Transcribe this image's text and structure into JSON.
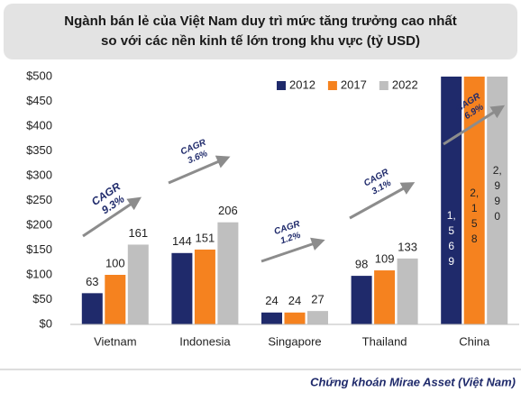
{
  "chart_data": {
    "type": "bar",
    "title": [
      "Ngành bán lẻ của Việt Nam duy trì mức tăng trưởng cao nhất",
      "so với các nền kinh tế lớn trong khu vực (tỷ USD)"
    ],
    "categories": [
      "Vietnam",
      "Indonesia",
      "Singapore",
      "Thailand",
      "China"
    ],
    "series": [
      {
        "name": "2012",
        "color": "#1f2a6b",
        "values": [
          63,
          144,
          24,
          98,
          1569
        ],
        "value_labels": [
          "63",
          "144",
          "24",
          "98",
          "1,569"
        ]
      },
      {
        "name": "2017",
        "color": "#f5821f",
        "values": [
          100,
          151,
          24,
          109,
          2158
        ],
        "value_labels": [
          "100",
          "151",
          "24",
          "109",
          "2,158"
        ]
      },
      {
        "name": "2022",
        "color": "#bfbfbf",
        "values": [
          161,
          206,
          27,
          133,
          2990
        ],
        "value_labels": [
          "161",
          "206",
          "27",
          "133",
          "2,990"
        ]
      }
    ],
    "annotations": [
      [
        "CAGR",
        "9.3%"
      ],
      [
        "CAGR",
        "3.6%"
      ],
      [
        "CAGR",
        "1.2%"
      ],
      [
        "CAGR",
        "3.1%"
      ],
      [
        "CAGR",
        "6.9%"
      ]
    ],
    "ylim": [
      0,
      500
    ],
    "yticks": [
      {
        "value": 0,
        "label": "$0"
      },
      {
        "value": 50,
        "label": "$50"
      },
      {
        "value": 100,
        "label": "$100"
      },
      {
        "value": 150,
        "label": "$150"
      },
      {
        "value": 200,
        "label": "$200"
      },
      {
        "value": 250,
        "label": "$250"
      },
      {
        "value": 300,
        "label": "$300"
      },
      {
        "value": 350,
        "label": "$350"
      },
      {
        "value": 400,
        "label": "$400"
      },
      {
        "value": 450,
        "label": "$450"
      },
      {
        "value": 500,
        "label": "$500"
      }
    ],
    "legend": "top-right",
    "source": "Chứng khoán Mirae Asset (Việt Nam)"
  }
}
